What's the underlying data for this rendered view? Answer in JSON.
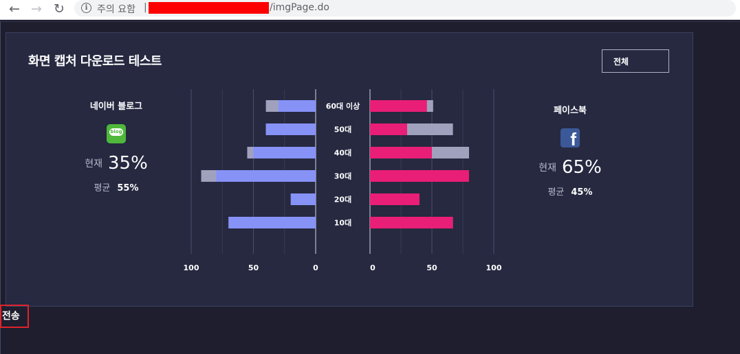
{
  "browser": {
    "security_label": "주의 요함",
    "url_separator": "|",
    "url_suffix": "/imgPage.do"
  },
  "panel": {
    "title": "화면 캡처 다운로드 테스트",
    "filter_label": "전체"
  },
  "left": {
    "name": "네이버 블로그",
    "logo_text": "blog",
    "current_label": "현재",
    "current_value": "35%",
    "average_label": "평균",
    "average_value": "55%"
  },
  "right": {
    "name": "페이스북",
    "logo_text": "f",
    "current_label": "현재",
    "current_value": "65%",
    "average_label": "평균",
    "average_value": "45%"
  },
  "send_label": "전송",
  "colors": {
    "left_current": "#8792f7",
    "right_current": "#e91e77",
    "average": "#a0a2bd",
    "redaction": "#ff0000"
  },
  "chart_data": {
    "type": "bar",
    "categories": [
      "60대 이상",
      "50대",
      "40대",
      "30대",
      "20대",
      "10대"
    ],
    "left_axis_ticks": [
      "100",
      "50",
      "0"
    ],
    "right_axis_ticks": [
      "0",
      "50",
      "100"
    ],
    "xlim": [
      0,
      100
    ],
    "series": [
      {
        "name": "",
        "side": "left",
        "kind": "current",
        "values": [
          30,
          40,
          50,
          80,
          20,
          70
        ]
      },
      {
        "name": "",
        "side": "left",
        "kind": "average",
        "values": [
          40,
          40,
          55,
          92,
          20,
          70
        ]
      },
      {
        "name": "",
        "side": "right",
        "kind": "current",
        "values": [
          46,
          30,
          50,
          80,
          40,
          67
        ]
      },
      {
        "name": "",
        "side": "right",
        "kind": "average",
        "values": [
          51,
          67,
          80,
          80,
          40,
          67
        ]
      }
    ]
  }
}
